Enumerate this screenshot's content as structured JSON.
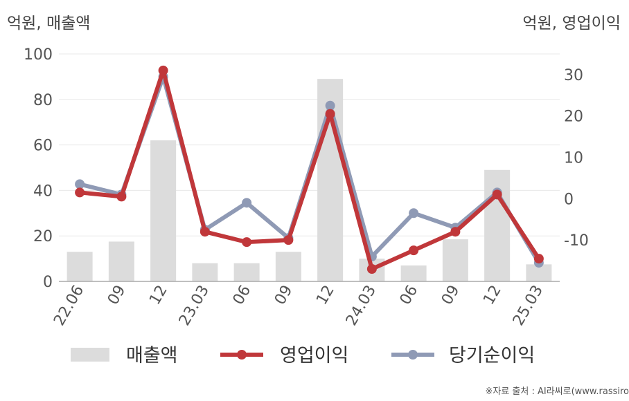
{
  "chart_data": {
    "type": "bar+line",
    "left_axis_label": "억원, 매출액",
    "right_axis_label": "억원, 영업이익",
    "categories": [
      "22.06",
      "09",
      "12",
      "23.03",
      "06",
      "09",
      "12",
      "24.03",
      "06",
      "09",
      "12",
      "25.03"
    ],
    "left_ylim": [
      0,
      100
    ],
    "left_ticks": [
      "0",
      "20",
      "40",
      "60",
      "80",
      "100"
    ],
    "right_ylim": [
      -20,
      35
    ],
    "right_ticks": [
      "-10",
      "0",
      "10",
      "20",
      "30"
    ],
    "series": [
      {
        "name": "매출액",
        "type": "bar",
        "axis": "left",
        "color": "#dcdcdc",
        "values": [
          13,
          17.5,
          62,
          8,
          8,
          13,
          89,
          10,
          7,
          18.5,
          49,
          7.5
        ]
      },
      {
        "name": "영업이익",
        "type": "line",
        "axis": "right",
        "color": "#c0373a",
        "values": [
          1.5,
          0.5,
          31,
          -8,
          -10.5,
          -10,
          20.5,
          -17,
          -12.5,
          -8,
          1,
          -14.5
        ]
      },
      {
        "name": "당기순이익",
        "type": "line",
        "axis": "right",
        "color": "#8f9ab5",
        "values": [
          3.5,
          1,
          29.5,
          -7.5,
          -1,
          -9.5,
          22.5,
          -14,
          -3.5,
          -7,
          1.5,
          -15.5
        ]
      }
    ],
    "legend_position": "bottom"
  },
  "source": "※자료 출처 : AI라씨로(www.rassiro"
}
